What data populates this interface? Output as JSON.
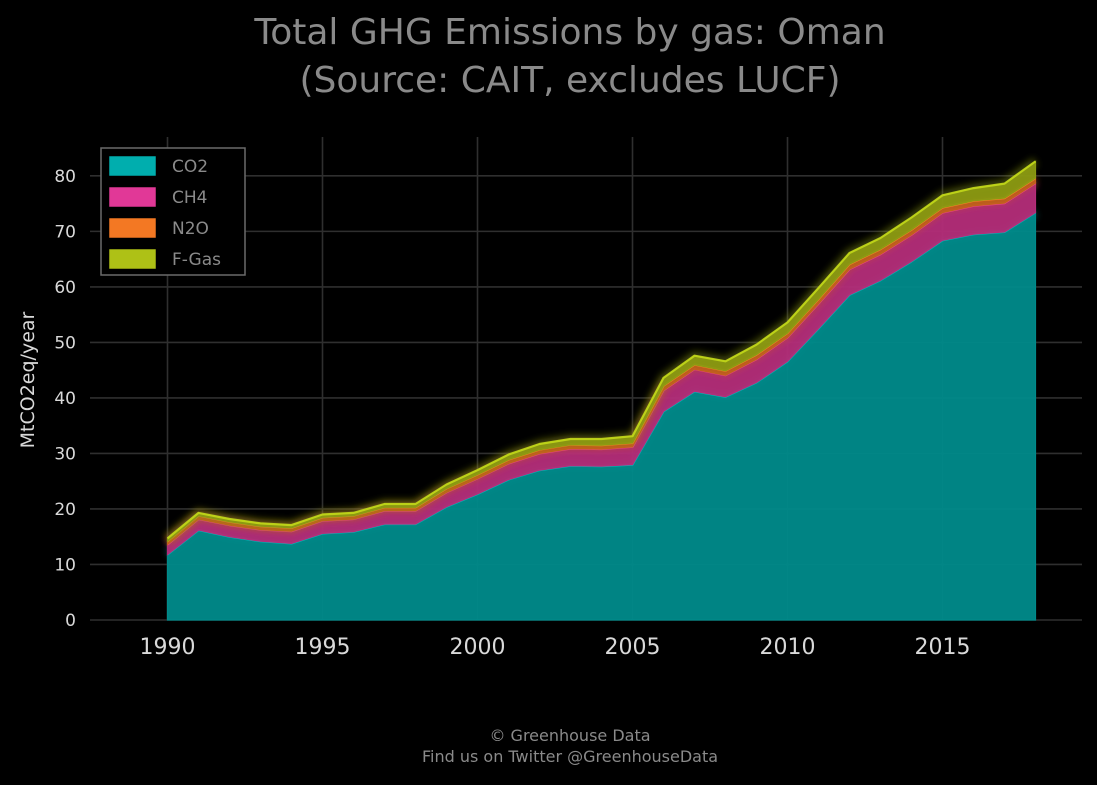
{
  "chart_data": {
    "type": "area",
    "stacked": true,
    "title_lines": [
      "Total GHG Emissions by gas: Oman",
      "(Source: CAIT, excludes LUCF)"
    ],
    "ylabel": "MtCO2eq/year",
    "xlabel": "",
    "xlim": [
      1987.5,
      2019.5
    ],
    "ylim": [
      0,
      87
    ],
    "x_ticks": [
      "1990",
      "1995",
      "2000",
      "2005",
      "2010",
      "2015"
    ],
    "y_ticks": [
      "0",
      "10",
      "20",
      "30",
      "40",
      "50",
      "60",
      "70",
      "80"
    ],
    "grid": true,
    "legend_position": "top-left",
    "x": [
      1990,
      1991,
      1992,
      1993,
      1994,
      1995,
      1996,
      1997,
      1998,
      1999,
      2000,
      2001,
      2002,
      2003,
      2004,
      2005,
      2006,
      2007,
      2008,
      2009,
      2010,
      2011,
      2012,
      2013,
      2014,
      2015,
      2016,
      2017,
      2018
    ],
    "series": [
      {
        "name": "CO2",
        "color": "#008b8b",
        "values": [
          11.8,
          16.2,
          15.0,
          14.2,
          13.8,
          15.6,
          15.9,
          17.3,
          17.3,
          20.4,
          22.7,
          25.3,
          27.0,
          27.8,
          27.7,
          28.0,
          37.6,
          41.2,
          40.2,
          42.8,
          46.6,
          52.5,
          58.6,
          61.2,
          64.6,
          68.4,
          69.5,
          69.9,
          73.4
        ]
      },
      {
        "name": "CH4",
        "color": "#b42d79",
        "values": [
          1.8,
          2.0,
          2.1,
          2.1,
          2.2,
          2.3,
          2.3,
          2.4,
          2.4,
          2.6,
          2.8,
          2.9,
          3.0,
          3.1,
          3.1,
          3.2,
          3.8,
          4.0,
          3.9,
          4.2,
          4.3,
          4.5,
          4.6,
          4.7,
          4.8,
          5.0,
          5.1,
          5.2,
          5.3
        ]
      },
      {
        "name": "N2O",
        "color": "#c2601c",
        "values": [
          0.6,
          0.6,
          0.6,
          0.6,
          0.6,
          0.6,
          0.6,
          0.6,
          0.6,
          0.7,
          0.7,
          0.7,
          0.7,
          0.7,
          0.7,
          0.7,
          0.8,
          0.8,
          0.8,
          0.8,
          0.8,
          0.8,
          0.9,
          0.9,
          0.9,
          0.9,
          0.9,
          0.9,
          0.9
        ]
      },
      {
        "name": "F-Gas",
        "color": "#8b9a12",
        "values": [
          0.5,
          0.5,
          0.5,
          0.5,
          0.5,
          0.5,
          0.5,
          0.6,
          0.6,
          0.7,
          0.8,
          0.9,
          1.0,
          1.0,
          1.1,
          1.2,
          1.4,
          1.6,
          1.7,
          1.8,
          1.9,
          2.0,
          2.0,
          2.0,
          2.2,
          2.2,
          2.3,
          2.6,
          3.0
        ]
      }
    ]
  },
  "footer": {
    "line1": "© Greenhouse Data",
    "line2": "Find us on Twitter @GreenhouseData"
  }
}
